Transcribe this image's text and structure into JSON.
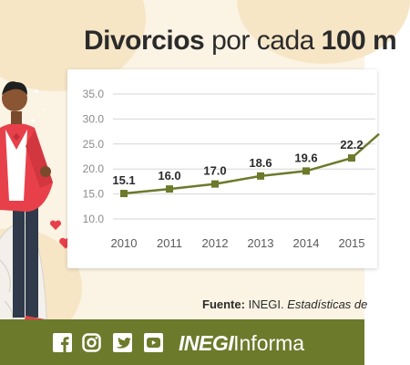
{
  "header": {
    "title_bold_1": "Divorcios",
    "title_normal": "por cada",
    "title_bold_2": "100 m"
  },
  "source": {
    "label": "Fuente:",
    "org": "INEGI.",
    "text": "Estadísticas de"
  },
  "footer": {
    "brand_bold": "INEGI",
    "brand_normal": "Informa",
    "social_icons": [
      "facebook-icon",
      "instagram-icon",
      "twitter-icon",
      "youtube-icon"
    ]
  },
  "colors": {
    "background": "#fbf3e3",
    "line": "#6c7a2b",
    "footer": "#6c7a2b",
    "groom_jacket": "#e8404a",
    "heart": "#e8404a"
  },
  "chart_data": {
    "type": "line",
    "title": "",
    "xlabel": "",
    "ylabel": "",
    "categories": [
      "2010",
      "2011",
      "2012",
      "2013",
      "2014",
      "2015"
    ],
    "values": [
      15.1,
      16.0,
      17.0,
      18.6,
      19.6,
      22.2
    ],
    "value_labels": [
      "15.1",
      "16.0",
      "17.0",
      "18.6",
      "19.6",
      "22.2"
    ],
    "yticks": [
      "10.0",
      "15.0",
      "20.0",
      "25.0",
      "30.0",
      "35.0"
    ],
    "ylim": [
      10,
      35
    ],
    "grid": true,
    "note": "series continues rising beyond the right edge (cropped)"
  }
}
